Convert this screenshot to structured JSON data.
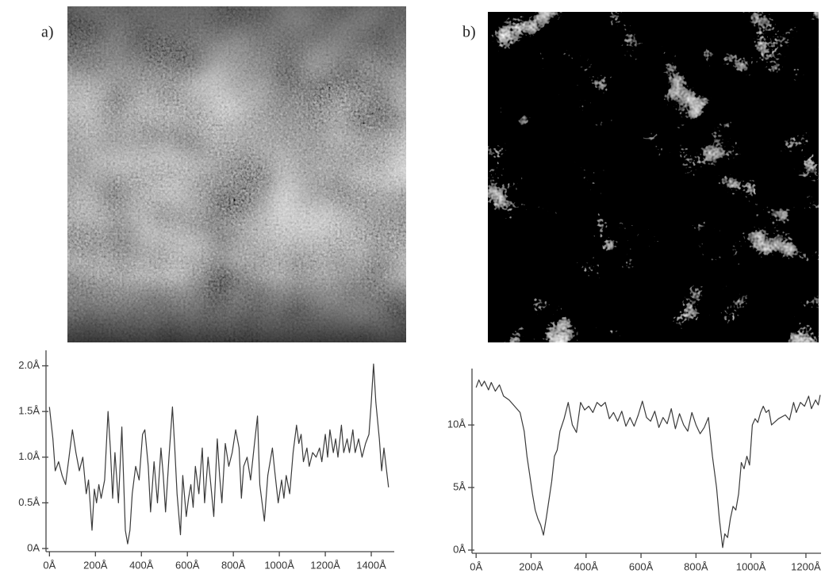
{
  "chart_data": [
    {
      "type": "line",
      "panel_label": "a)",
      "color": "#3a3a3a",
      "grid": false,
      "xlim": [
        -15,
        1500
      ],
      "ylim": [
        0,
        2.1
      ],
      "xticks": [
        {
          "value": 0,
          "label": "0Å"
        },
        {
          "value": 200,
          "label": "200Å"
        },
        {
          "value": 400,
          "label": "400Å"
        },
        {
          "value": 600,
          "label": "600Å"
        },
        {
          "value": 800,
          "label": "800Å"
        },
        {
          "value": 1000,
          "label": "1000Å"
        },
        {
          "value": 1200,
          "label": "1200Å"
        },
        {
          "value": 1400,
          "label": "1400Å"
        }
      ],
      "yticks": [
        {
          "value": 0,
          "label": "0A"
        },
        {
          "value": 0.5,
          "label": "0.5Å"
        },
        {
          "value": 1.0,
          "label": "1.0Å"
        },
        {
          "value": 1.5,
          "label": "1.5Å"
        },
        {
          "value": 2.0,
          "label": "2.0Å"
        }
      ],
      "x": [
        0,
        15,
        25,
        40,
        55,
        70,
        85,
        100,
        115,
        130,
        145,
        160,
        170,
        185,
        195,
        205,
        215,
        225,
        240,
        255,
        265,
        275,
        285,
        300,
        315,
        330,
        340,
        350,
        360,
        375,
        390,
        405,
        415,
        430,
        440,
        455,
        470,
        485,
        495,
        505,
        520,
        535,
        545,
        555,
        570,
        580,
        595,
        605,
        615,
        625,
        635,
        650,
        665,
        675,
        690,
        700,
        715,
        730,
        740,
        750,
        765,
        780,
        795,
        810,
        825,
        835,
        845,
        860,
        875,
        890,
        905,
        915,
        925,
        935,
        950,
        960,
        970,
        980,
        995,
        1010,
        1020,
        1030,
        1045,
        1060,
        1075,
        1085,
        1095,
        1105,
        1120,
        1130,
        1145,
        1160,
        1175,
        1185,
        1200,
        1210,
        1220,
        1235,
        1245,
        1255,
        1270,
        1280,
        1295,
        1305,
        1320,
        1330,
        1345,
        1360,
        1375,
        1390,
        1400,
        1410,
        1420,
        1435,
        1445,
        1455,
        1475
      ],
      "values": [
        1.55,
        1.2,
        0.85,
        0.95,
        0.8,
        0.7,
        1.0,
        1.3,
        1.05,
        0.85,
        1.0,
        0.6,
        0.75,
        0.2,
        0.65,
        0.5,
        0.7,
        0.55,
        0.75,
        1.5,
        1.1,
        0.55,
        1.05,
        0.5,
        1.33,
        0.2,
        0.05,
        0.2,
        0.6,
        0.9,
        0.75,
        1.25,
        1.3,
        0.9,
        0.4,
        0.95,
        0.5,
        1.1,
        0.8,
        0.4,
        1.0,
        1.55,
        1.1,
        0.6,
        0.15,
        0.8,
        0.35,
        0.55,
        0.7,
        0.45,
        0.9,
        0.6,
        1.1,
        0.5,
        1.0,
        0.75,
        0.35,
        1.2,
        0.8,
        0.5,
        1.15,
        0.9,
        1.05,
        1.3,
        1.1,
        0.55,
        0.9,
        1.0,
        0.75,
        1.1,
        1.45,
        0.7,
        0.5,
        0.3,
        0.8,
        0.95,
        1.1,
        0.85,
        0.5,
        0.75,
        0.55,
        0.8,
        0.6,
        1.05,
        1.35,
        1.15,
        1.25,
        0.95,
        1.1,
        0.9,
        1.05,
        1.0,
        1.1,
        0.95,
        1.25,
        1.0,
        1.3,
        1.05,
        1.2,
        1.0,
        1.35,
        1.05,
        1.2,
        1.05,
        1.3,
        1.05,
        1.2,
        1.0,
        1.15,
        1.25,
        1.6,
        2.02,
        1.6,
        1.2,
        0.85,
        1.1,
        0.67
      ]
    },
    {
      "type": "line",
      "panel_label": "b)",
      "color": "#3a3a3a",
      "grid": false,
      "xlim": [
        -15,
        1255
      ],
      "ylim": [
        0,
        14
      ],
      "xticks": [
        {
          "value": 0,
          "label": "0Å"
        },
        {
          "value": 200,
          "label": "200Å"
        },
        {
          "value": 400,
          "label": "400Å"
        },
        {
          "value": 600,
          "label": "600Å"
        },
        {
          "value": 800,
          "label": "800Å"
        },
        {
          "value": 1000,
          "label": "1000Å"
        },
        {
          "value": 1200,
          "label": "1200Å"
        }
      ],
      "yticks": [
        {
          "value": 0,
          "label": "0Å"
        },
        {
          "value": 5,
          "label": "5Å"
        },
        {
          "value": 10,
          "label": "10Å"
        }
      ],
      "x": [
        0,
        10,
        20,
        30,
        45,
        55,
        70,
        85,
        100,
        120,
        140,
        160,
        175,
        185,
        195,
        205,
        215,
        225,
        235,
        245,
        255,
        265,
        275,
        285,
        295,
        305,
        320,
        335,
        350,
        365,
        380,
        395,
        410,
        425,
        440,
        455,
        470,
        485,
        500,
        515,
        530,
        545,
        560,
        575,
        590,
        605,
        620,
        635,
        650,
        665,
        680,
        695,
        710,
        725,
        740,
        755,
        770,
        785,
        800,
        815,
        830,
        845,
        860,
        875,
        885,
        897,
        905,
        915,
        925,
        935,
        945,
        955,
        965,
        975,
        985,
        995,
        1005,
        1015,
        1025,
        1035,
        1045,
        1055,
        1065,
        1075,
        1100,
        1125,
        1140,
        1155,
        1165,
        1180,
        1195,
        1210,
        1220,
        1235,
        1245,
        1252
      ],
      "values": [
        13.0,
        13.6,
        13.1,
        13.5,
        12.8,
        13.4,
        12.7,
        13.2,
        12.3,
        12.0,
        11.5,
        11.0,
        9.5,
        7.5,
        6.0,
        4.5,
        3.2,
        2.5,
        2.0,
        1.2,
        2.5,
        4.0,
        5.5,
        7.5,
        8.0,
        9.5,
        10.5,
        11.8,
        10.0,
        9.4,
        11.8,
        11.2,
        11.5,
        11.0,
        11.8,
        11.5,
        11.8,
        10.5,
        11.0,
        10.3,
        11.1,
        9.9,
        10.6,
        9.9,
        10.8,
        11.9,
        10.6,
        10.3,
        11.1,
        9.8,
        10.6,
        10.1,
        11.3,
        9.7,
        10.9,
        10.0,
        9.5,
        11.0,
        10.0,
        9.3,
        9.8,
        10.6,
        7.5,
        5.0,
        2.5,
        0.2,
        1.3,
        1.0,
        2.5,
        3.5,
        3.2,
        4.5,
        7.0,
        6.5,
        7.5,
        6.8,
        10.0,
        10.5,
        10.2,
        11.0,
        11.5,
        11.0,
        11.2,
        10.0,
        10.5,
        10.8,
        10.4,
        11.8,
        11.0,
        11.8,
        11.5,
        12.3,
        11.3,
        12.0,
        11.6,
        12.4
      ]
    }
  ]
}
